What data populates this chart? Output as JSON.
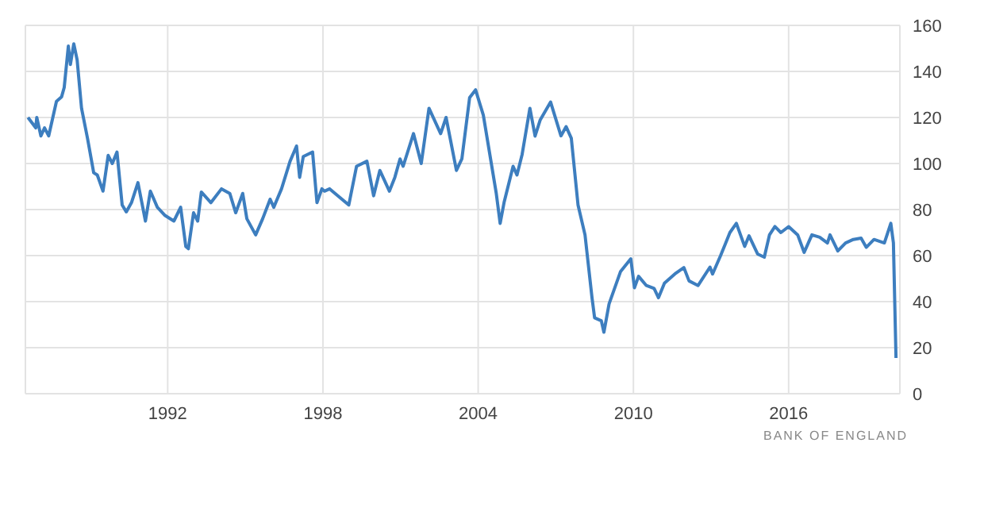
{
  "chart_data": {
    "type": "line",
    "x": [
      1986.6,
      1986.9,
      1986.94,
      1987.1,
      1987.24,
      1987.4,
      1987.7,
      1987.9,
      1988.0,
      1988.16,
      1988.24,
      1988.37,
      1988.5,
      1988.67,
      1988.9,
      1989.14,
      1989.28,
      1989.5,
      1989.7,
      1989.86,
      1990.04,
      1990.24,
      1990.4,
      1990.6,
      1990.85,
      1991.14,
      1991.33,
      1991.6,
      1991.9,
      1992.24,
      1992.5,
      1992.7,
      1992.8,
      1993.0,
      1993.16,
      1993.3,
      1993.67,
      1994.08,
      1994.4,
      1994.63,
      1994.9,
      1995.06,
      1995.4,
      1995.67,
      1995.96,
      1996.1,
      1996.4,
      1996.73,
      1996.98,
      1997.1,
      1997.24,
      1997.6,
      1997.77,
      1997.96,
      1998.06,
      1998.26,
      1998.57,
      1999.0,
      1999.3,
      1999.7,
      1999.96,
      2000.2,
      2000.57,
      2000.78,
      2000.98,
      2001.1,
      2001.5,
      2001.8,
      2002.1,
      2002.55,
      2002.76,
      2003.16,
      2003.37,
      2003.67,
      2003.9,
      2004.2,
      2004.7,
      2004.85,
      2005.0,
      2005.35,
      2005.5,
      2005.7,
      2006.0,
      2006.2,
      2006.4,
      2006.8,
      2007.2,
      2007.4,
      2007.6,
      2007.86,
      2008.13,
      2008.4,
      2008.5,
      2008.76,
      2008.86,
      2009.06,
      2009.5,
      2009.9,
      2010.04,
      2010.2,
      2010.5,
      2010.8,
      2010.97,
      2011.2,
      2011.6,
      2011.95,
      2012.15,
      2012.5,
      2012.96,
      2013.06,
      2013.37,
      2013.57,
      2013.73,
      2013.98,
      2014.3,
      2014.47,
      2014.8,
      2015.06,
      2015.26,
      2015.47,
      2015.7,
      2016.0,
      2016.35,
      2016.6,
      2016.9,
      2017.2,
      2017.5,
      2017.6,
      2017.9,
      2018.2,
      2018.5,
      2018.8,
      2019.0,
      2019.3,
      2019.7,
      2019.95,
      2020.05,
      2020.15
    ],
    "series": [
      {
        "color": "#3d7ebf",
        "values": [
          120,
          115.5,
          120,
          112,
          115.5,
          112,
          127,
          129,
          133,
          151,
          143,
          152,
          145,
          124,
          111,
          96,
          95,
          88,
          103.5,
          100,
          105,
          82,
          79,
          83,
          91.7,
          75,
          88,
          81,
          77.4,
          75,
          81,
          64,
          63,
          78.6,
          75,
          87.6,
          83,
          89,
          87,
          78.6,
          87,
          76,
          69,
          76,
          84.5,
          81,
          89,
          101,
          107.6,
          94,
          103,
          105,
          83,
          89,
          88,
          89,
          86,
          82,
          98.8,
          101,
          86,
          97,
          88,
          94,
          102,
          98.8,
          113,
          100,
          124,
          113,
          120,
          97,
          102,
          128.6,
          132,
          121,
          87,
          74,
          83,
          98.8,
          95,
          104,
          124,
          111.9,
          119,
          126.7,
          112,
          116,
          111,
          82,
          69,
          41.7,
          33,
          31.7,
          26.7,
          39,
          53,
          58.6,
          46,
          51,
          47,
          45.7,
          41.7,
          48,
          52,
          54.8,
          49,
          47,
          55,
          52,
          60,
          65.5,
          70,
          74,
          64,
          68.6,
          60.7,
          59.3,
          69,
          72.6,
          70,
          72.6,
          69,
          61.4,
          69,
          68,
          65.5,
          69,
          62,
          65.5,
          67,
          67.6,
          63.6,
          67,
          65.5,
          74,
          65.5,
          15.5
        ]
      }
    ],
    "xlim": [
      1986.5,
      2020.3
    ],
    "xticks": [
      1992,
      1998,
      2004,
      2010,
      2016
    ],
    "ylim": [
      0,
      160
    ],
    "yticks": [
      0,
      20,
      40,
      60,
      80,
      100,
      120,
      140,
      160
    ],
    "grid": true,
    "marker": "none",
    "line_style": "solid",
    "legend": false,
    "annotations": [
      "BANK OF ENGLAND"
    ]
  }
}
